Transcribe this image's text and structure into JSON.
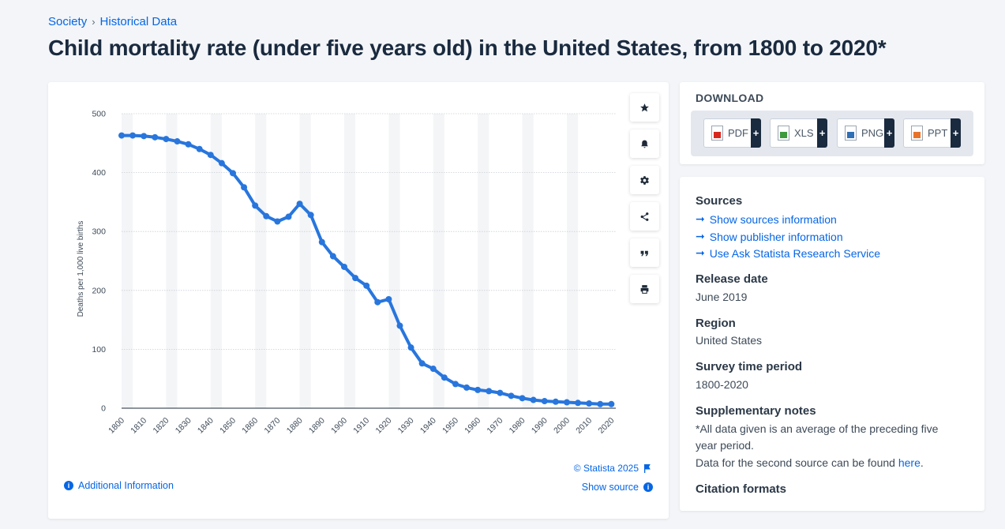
{
  "breadcrumb": {
    "item1": "Society",
    "sep": "›",
    "item2": "Historical Data"
  },
  "title": "Child mortality rate (under five years old) in the United States, from 1800 to 2020*",
  "chart_data": {
    "type": "line",
    "title": "",
    "xlabel": "",
    "ylabel": "Deaths per 1,000 live births",
    "ylim": [
      0,
      500
    ],
    "yticks": [
      0,
      100,
      200,
      300,
      400,
      500
    ],
    "xtick_labels": [
      "1800",
      "1810",
      "1820",
      "1830",
      "1840",
      "1850",
      "1860",
      "1870",
      "1880",
      "1890",
      "1900",
      "1910",
      "1920",
      "1930",
      "1940",
      "1950",
      "1960",
      "1970",
      "1980",
      "1990",
      "2000",
      "2010",
      "2020"
    ],
    "series": [
      {
        "name": "Deaths per 1,000 live births",
        "color": "#2876dd",
        "x": [
          1800,
          1805,
          1810,
          1815,
          1820,
          1825,
          1830,
          1835,
          1840,
          1845,
          1850,
          1855,
          1860,
          1865,
          1870,
          1875,
          1880,
          1885,
          1890,
          1895,
          1900,
          1905,
          1910,
          1915,
          1920,
          1925,
          1930,
          1935,
          1940,
          1945,
          1950,
          1955,
          1960,
          1965,
          1970,
          1975,
          1980,
          1985,
          1990,
          1995,
          2000,
          2005,
          2010,
          2015,
          2020
        ],
        "values": [
          463,
          463,
          462,
          460,
          457,
          453,
          448,
          440,
          430,
          416,
          399,
          375,
          344,
          326,
          317,
          325,
          347,
          328,
          282,
          258,
          240,
          221,
          208,
          180,
          185,
          140,
          103,
          76,
          67,
          52,
          41,
          35,
          31,
          29,
          26,
          21,
          17,
          14,
          12,
          11,
          10,
          9,
          8,
          7,
          7
        ]
      }
    ]
  },
  "toolbar": {
    "star": "star-icon",
    "bell": "bell-icon",
    "gear": "gear-icon",
    "share": "share-icon",
    "quote": "quote-icon",
    "print": "print-icon"
  },
  "chart_footer": {
    "credit": "© Statista 2025",
    "show_source": "Show source",
    "additional_info": "Additional Information",
    "info_glyph": "i"
  },
  "download": {
    "title": "DOWNLOAD",
    "buttons": [
      {
        "label": "PDF",
        "color": "#d9261c",
        "plus": "+"
      },
      {
        "label": "XLS",
        "color": "#3c9a3c",
        "plus": "+"
      },
      {
        "label": "PNG",
        "color": "#2f6fb5",
        "plus": "+"
      },
      {
        "label": "PPT",
        "color": "#e8742a",
        "plus": "+"
      }
    ]
  },
  "info": {
    "sources_title": "Sources",
    "arrow": "➞",
    "links": [
      "Show sources information",
      "Show publisher information",
      "Use Ask Statista Research Service"
    ],
    "release_title": "Release date",
    "release_value": "June 2019",
    "region_title": "Region",
    "region_value": "United States",
    "period_title": "Survey time period",
    "period_value": "1800-2020",
    "notes_title": "Supplementary notes",
    "notes_line1": "*All data given is an average of the preceding five year period.",
    "notes_line2": "Data for the second source can be found",
    "notes_link": "here",
    "notes_end": ".",
    "citation_title": "Citation formats"
  }
}
